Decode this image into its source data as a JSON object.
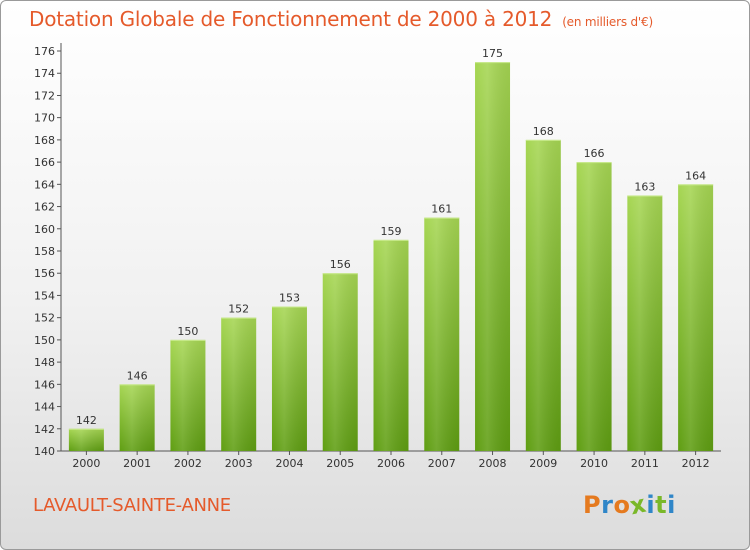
{
  "header": {
    "title": "Dotation Globale de Fonctionnement de 2000 à 2012",
    "subtitle": "(en milliers d'€)"
  },
  "footer": {
    "commune": "LAVAULT-SAINTE-ANNE",
    "logo_text": "Proxiti",
    "logo_letters": [
      "P",
      "r",
      "o",
      "x",
      "i",
      "t",
      "i"
    ],
    "logo_colors": [
      "#e57a1f",
      "#2f86c8",
      "#e57a1f",
      "#7ab829",
      "#2f86c8",
      "#7ab829",
      "#2f86c8"
    ]
  },
  "colors": {
    "title": "#e55a2b",
    "bar_top": "#a6d653",
    "bar_bottom": "#5f9e12",
    "axis": "#555555"
  },
  "chart_data": {
    "type": "bar",
    "title": "Dotation Globale de Fonctionnement de 2000 à 2012",
    "subtitle": "(en milliers d'€)",
    "categories": [
      "2000",
      "2001",
      "2002",
      "2003",
      "2004",
      "2005",
      "2006",
      "2007",
      "2008",
      "2009",
      "2010",
      "2011",
      "2012"
    ],
    "values": [
      142,
      146,
      150,
      152,
      153,
      156,
      159,
      161,
      175,
      168,
      166,
      163,
      164
    ],
    "xlabel": "",
    "ylabel": "",
    "ylim": [
      140,
      176
    ],
    "ytick_step": 2,
    "grid": false,
    "legend": "none"
  }
}
